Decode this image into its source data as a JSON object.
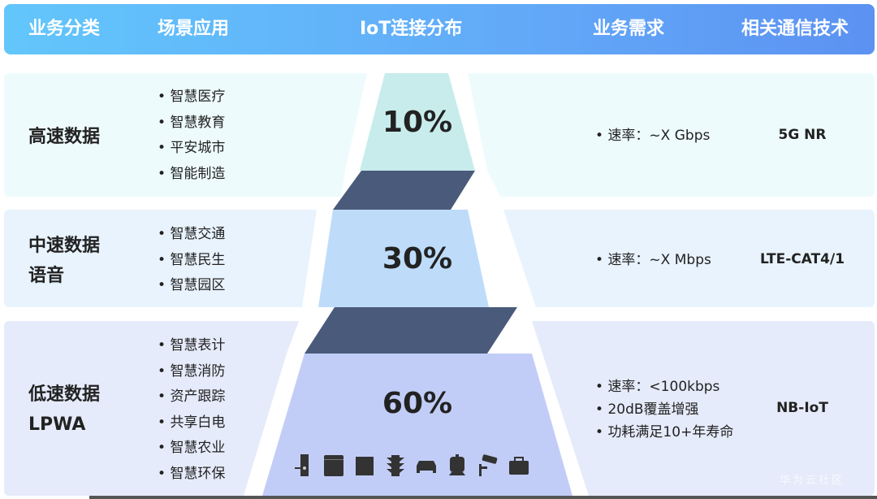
{
  "header": {
    "col_category": "业务分类",
    "col_scenario": "场景应用",
    "col_distribution": "IoT连接分布",
    "col_requirement": "业务需求",
    "col_tech": "相关通信技术"
  },
  "rows": [
    {
      "category": [
        "高速数据"
      ],
      "scenarios": [
        "智慧医疗",
        "智慧教育",
        "平安城市",
        "智能制造"
      ],
      "percent": "10%",
      "requirements": [
        "速率：~X Gbps"
      ],
      "tech": "5G NR"
    },
    {
      "category": [
        "中速数据",
        "语音"
      ],
      "scenarios": [
        "智慧交通",
        "智慧民生",
        "智慧园区"
      ],
      "percent": "30%",
      "requirements": [
        "速率：~X Mbps"
      ],
      "tech": "LTE-CAT4/1"
    },
    {
      "category": [
        "低速数据",
        "LPWA"
      ],
      "scenarios": [
        "智慧表计",
        "智慧消防",
        "资产跟踪",
        "共享白电",
        "智慧农业",
        "智慧环保"
      ],
      "percent": "60%",
      "requirements": [
        "速率：<100kbps",
        "20dB覆盖增强",
        "功耗满足10+年寿命"
      ],
      "tech": "NB-IoT"
    }
  ],
  "distribution_values": [
    10,
    30,
    60
  ],
  "device_icons": [
    "door-lock-icon",
    "refrigerator-icon",
    "washing-machine-icon",
    "traffic-light-icon",
    "car-icon",
    "train-icon",
    "security-camera-icon",
    "briefcase-icon"
  ],
  "colors": {
    "tier1": "#c8ecec",
    "tier2": "#bedcfa",
    "tier3": "#c2cdf7",
    "connector": "#4a5a7a"
  },
  "watermark": "华为云社区"
}
